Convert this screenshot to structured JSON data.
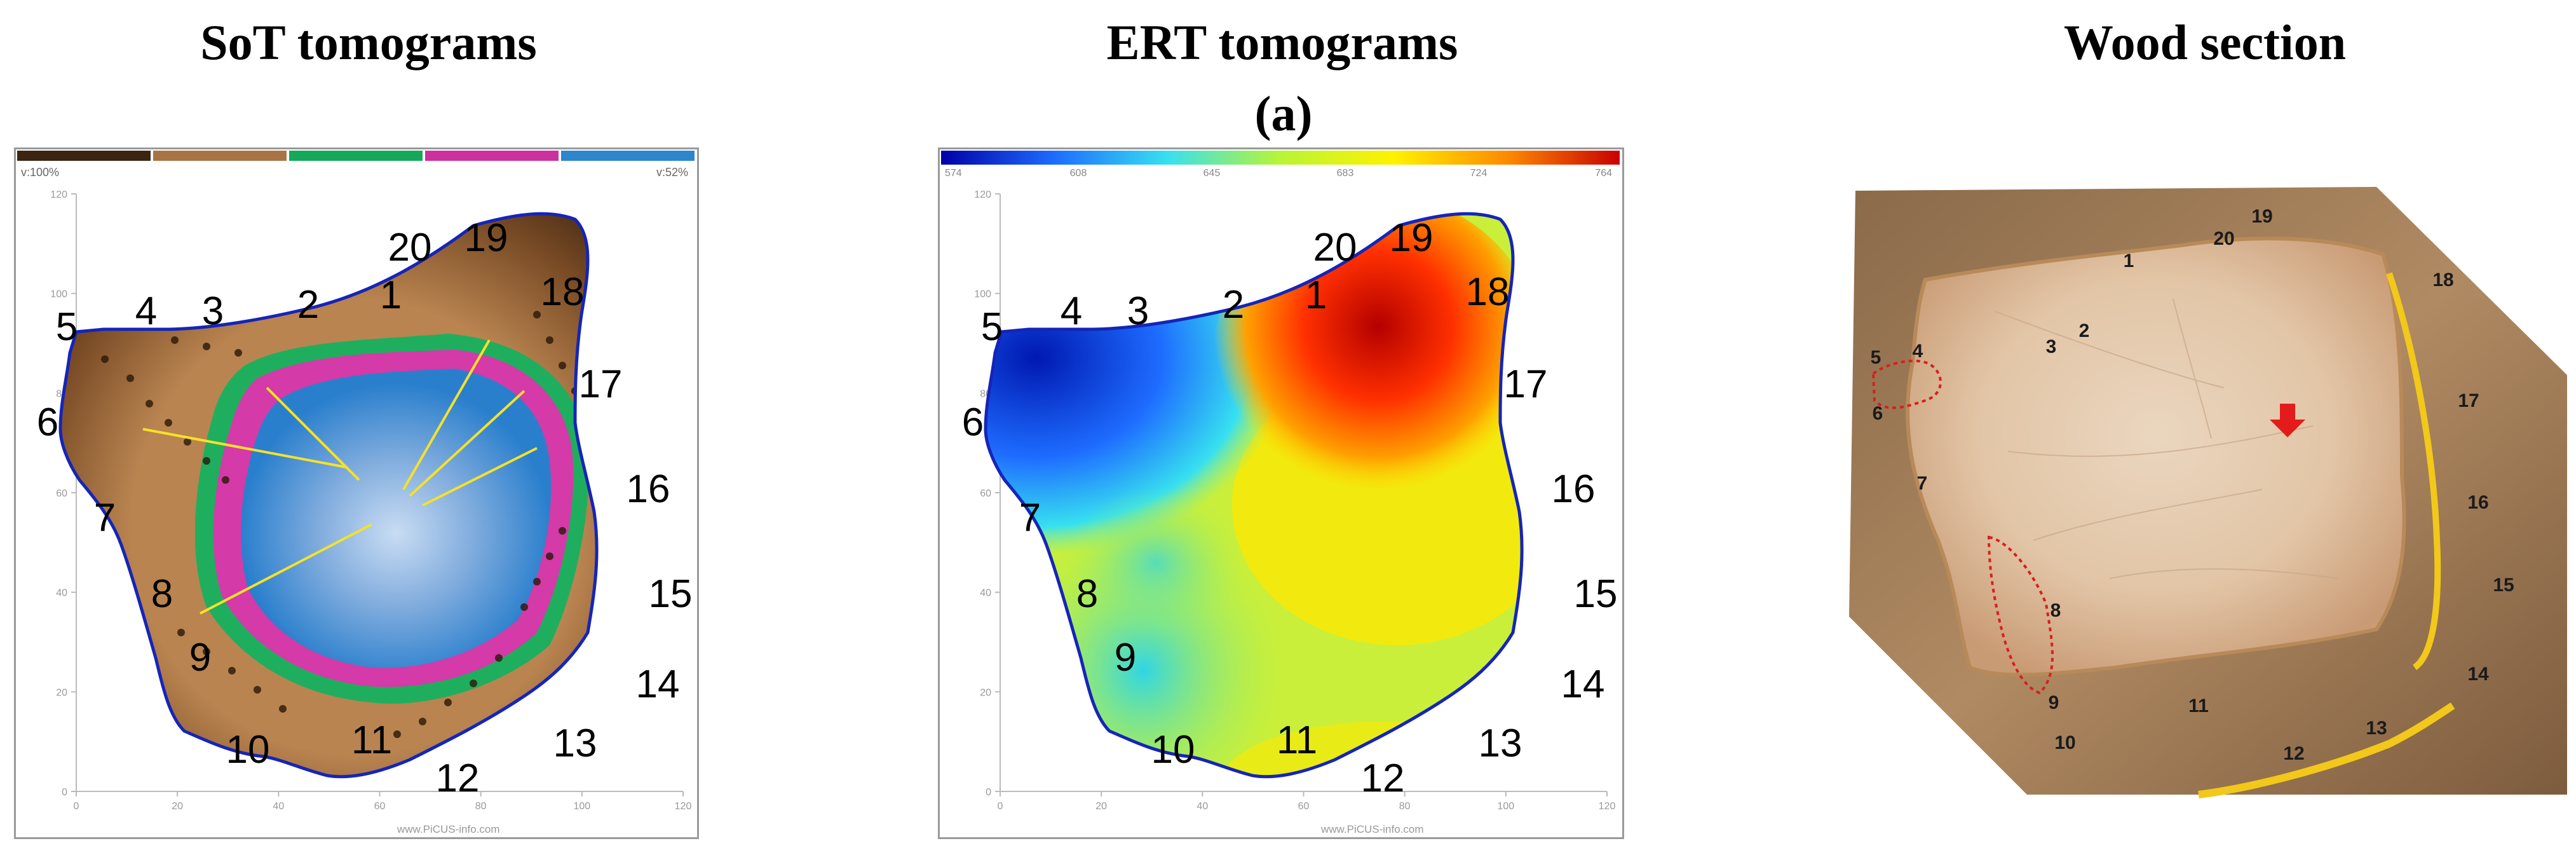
{
  "figure": {
    "headings": {
      "sot": "SoT tomograms",
      "ert": "ERT tomograms",
      "wood": "Wood section"
    },
    "panel_label": "(a)"
  },
  "sot": {
    "legend_colors": [
      "#3b2411",
      "#a87444",
      "#14a85a",
      "#cc2f9e",
      "#2b86cd"
    ],
    "velocity_left": "v:100%",
    "velocity_right": "v:52%",
    "y_ticks": [
      "120",
      "100",
      "80",
      "60",
      "40",
      "20",
      "0"
    ],
    "x_ticks": [
      "0",
      "20",
      "40",
      "60",
      "80",
      "100",
      "120"
    ],
    "watermark": "www.PiCUS-info.com",
    "sensors": [
      "1",
      "2",
      "3",
      "4",
      "5",
      "6",
      "7",
      "8",
      "9",
      "10",
      "11",
      "12",
      "13",
      "14",
      "15",
      "16",
      "17",
      "18",
      "19",
      "20"
    ]
  },
  "ert": {
    "colorbar_ticks": [
      "574",
      "608",
      "645",
      "683",
      "724",
      "764"
    ],
    "colorbar_colors": [
      "#0000a8",
      "#1e6cff",
      "#37e0f0",
      "#b8f536",
      "#fff200",
      "#ff8a00",
      "#c80000"
    ],
    "y_ticks": [
      "120",
      "100",
      "80",
      "60",
      "40",
      "20",
      "0"
    ],
    "x_ticks": [
      "0",
      "20",
      "40",
      "60",
      "80",
      "100",
      "120"
    ],
    "watermark": "www.PiCUS-info.com",
    "sensors": [
      "1",
      "2",
      "3",
      "4",
      "5",
      "6",
      "7",
      "8",
      "9",
      "10",
      "11",
      "12",
      "13",
      "14",
      "15",
      "16",
      "17",
      "18",
      "19",
      "20"
    ]
  },
  "wood": {
    "sensors": [
      "1",
      "2",
      "3",
      "4",
      "5",
      "6",
      "7",
      "8",
      "9",
      "10",
      "11",
      "12",
      "13",
      "14",
      "15",
      "16",
      "17",
      "18",
      "19",
      "20"
    ]
  }
}
